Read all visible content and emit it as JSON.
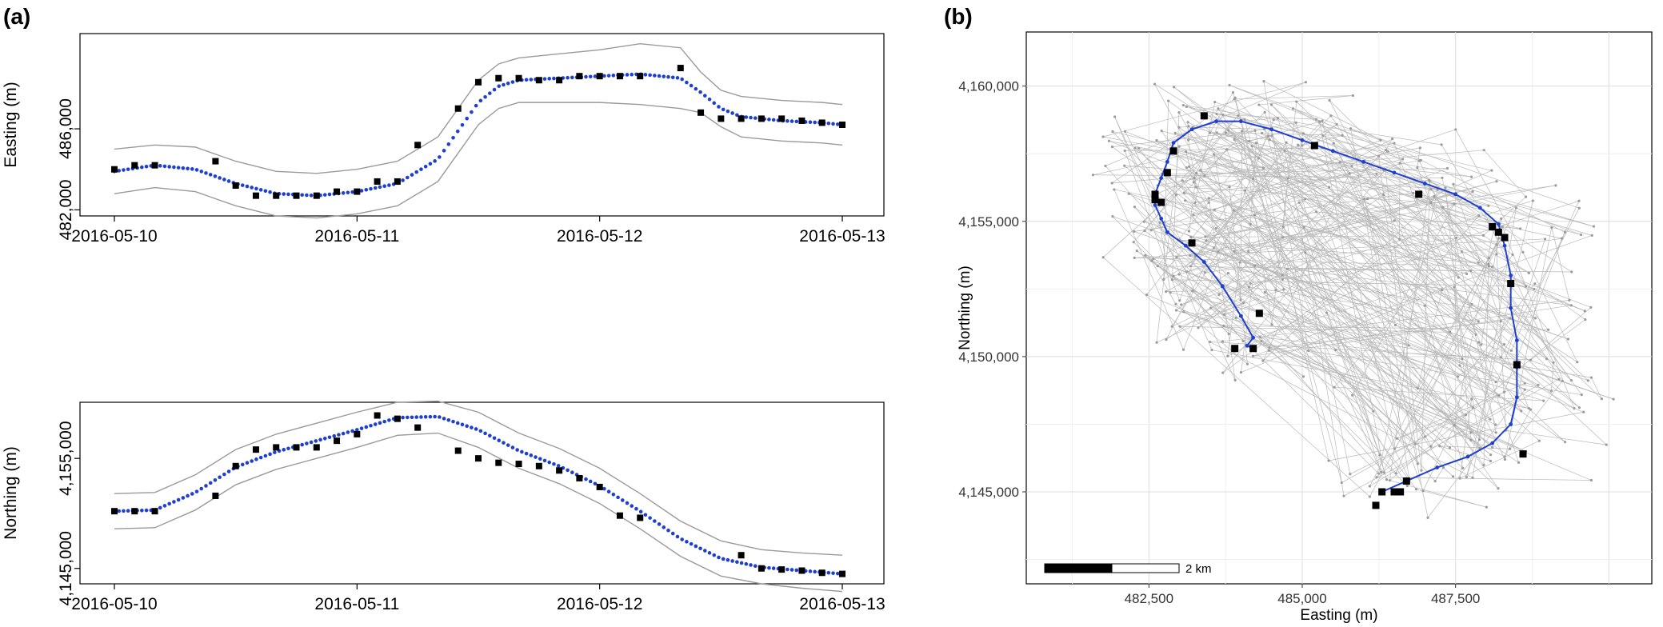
{
  "panels": {
    "a_label": "(a)",
    "b_label": "(b)"
  },
  "chart_data": [
    {
      "type": "line",
      "panel": "(a) top",
      "title": "",
      "xlabel": "",
      "ylabel": "Easting (m)",
      "x_ticks": [
        "2016-05-10",
        "2016-05-11",
        "2016-05-12",
        "2016-05-13"
      ],
      "y_ticks": [
        "482,000",
        "486,000"
      ],
      "xlim": [
        "2016-05-10T00:00",
        "2016-05-13T00:00"
      ],
      "ylim": [
        481700,
        490700
      ],
      "observations": {
        "x": [
          "2016-05-10T00:00",
          "2016-05-10T02:00",
          "2016-05-10T04:00",
          "2016-05-10T10:00",
          "2016-05-10T12:00",
          "2016-05-10T14:00",
          "2016-05-10T16:00",
          "2016-05-10T18:00",
          "2016-05-10T20:00",
          "2016-05-10T22:00",
          "2016-05-11T00:00",
          "2016-05-11T02:00",
          "2016-05-11T04:00",
          "2016-05-11T06:00",
          "2016-05-11T10:00",
          "2016-05-11T12:00",
          "2016-05-11T14:00",
          "2016-05-11T16:00",
          "2016-05-11T18:00",
          "2016-05-11T20:00",
          "2016-05-11T22:00",
          "2016-05-12T00:00",
          "2016-05-12T02:00",
          "2016-05-12T04:00",
          "2016-05-12T08:00",
          "2016-05-12T10:00",
          "2016-05-12T12:00",
          "2016-05-12T14:00",
          "2016-05-12T16:00",
          "2016-05-12T18:00",
          "2016-05-12T20:00",
          "2016-05-12T22:00",
          "2016-05-13T00:00"
        ],
        "y": [
          484000,
          484200,
          484200,
          484400,
          483200,
          482700,
          482700,
          482700,
          482700,
          482900,
          482900,
          483400,
          483400,
          485200,
          487000,
          488300,
          488500,
          488500,
          488400,
          488400,
          488600,
          488600,
          488600,
          488600,
          489000,
          486800,
          486500,
          486500,
          486500,
          486500,
          486400,
          486300,
          486200
        ]
      },
      "fit": {
        "x": [
          "2016-05-10T00:00",
          "2016-05-10T04:00",
          "2016-05-10T08:00",
          "2016-05-10T12:00",
          "2016-05-10T16:00",
          "2016-05-10T20:00",
          "2016-05-11T00:00",
          "2016-05-11T04:00",
          "2016-05-11T08:00",
          "2016-05-11T10:00",
          "2016-05-11T12:00",
          "2016-05-11T14:00",
          "2016-05-11T16:00",
          "2016-05-11T20:00",
          "2016-05-12T00:00",
          "2016-05-12T04:00",
          "2016-05-12T08:00",
          "2016-05-12T10:00",
          "2016-05-12T12:00",
          "2016-05-12T14:00",
          "2016-05-12T18:00",
          "2016-05-12T22:00",
          "2016-05-13T00:00"
        ],
        "y": [
          483900,
          484200,
          484000,
          483300,
          482800,
          482700,
          482900,
          483300,
          484500,
          485900,
          487300,
          488100,
          488400,
          488500,
          488600,
          488700,
          488500,
          487800,
          487000,
          486600,
          486400,
          486300,
          486200
        ]
      },
      "upper_band": [
        485000,
        485200,
        485100,
        484400,
        483900,
        483800,
        484000,
        484400,
        485600,
        487000,
        488400,
        489200,
        489500,
        489700,
        489900,
        490200,
        490000,
        488800,
        487900,
        487600,
        487400,
        487300,
        487200
      ],
      "lower_band": [
        482800,
        483100,
        482900,
        482200,
        481700,
        481600,
        481800,
        482200,
        483400,
        484800,
        486200,
        487000,
        487300,
        487300,
        487300,
        487200,
        487000,
        486800,
        486100,
        485600,
        485400,
        485300,
        485200
      ]
    },
    {
      "type": "line",
      "panel": "(a) bottom",
      "title": "",
      "xlabel": "",
      "ylabel": "Northing (m)",
      "x_ticks": [
        "2016-05-10",
        "2016-05-11",
        "2016-05-12",
        "2016-05-13"
      ],
      "y_ticks": [
        "4,145,000",
        "4,155,000"
      ],
      "xlim": [
        "2016-05-10T00:00",
        "2016-05-13T00:00"
      ],
      "ylim": [
        4143600,
        4160100
      ],
      "observations": {
        "x": [
          "2016-05-10T00:00",
          "2016-05-10T02:00",
          "2016-05-10T04:00",
          "2016-05-10T10:00",
          "2016-05-10T12:00",
          "2016-05-10T14:00",
          "2016-05-10T16:00",
          "2016-05-10T18:00",
          "2016-05-10T20:00",
          "2016-05-10T22:00",
          "2016-05-11T00:00",
          "2016-05-11T02:00",
          "2016-05-11T04:00",
          "2016-05-11T06:00",
          "2016-05-11T10:00",
          "2016-05-11T12:00",
          "2016-05-11T14:00",
          "2016-05-11T16:00",
          "2016-05-11T18:00",
          "2016-05-11T20:00",
          "2016-05-11T22:00",
          "2016-05-12T00:00",
          "2016-05-12T02:00",
          "2016-05-12T04:00",
          "2016-05-12T14:00",
          "2016-05-12T16:00",
          "2016-05-12T18:00",
          "2016-05-12T20:00",
          "2016-05-12T22:00",
          "2016-05-13T00:00"
        ],
        "y": [
          4150200,
          4150200,
          4150200,
          4151600,
          4154300,
          4155800,
          4156000,
          4156000,
          4156000,
          4156600,
          4157200,
          4158900,
          4158600,
          4157800,
          4155700,
          4155000,
          4154600,
          4154500,
          4154300,
          4153900,
          4153200,
          4152400,
          4149800,
          4149600,
          4146200,
          4145000,
          4144900,
          4144800,
          4144600,
          4144500
        ]
      },
      "fit": {
        "x": [
          "2016-05-10T00:00",
          "2016-05-10T04:00",
          "2016-05-10T08:00",
          "2016-05-10T12:00",
          "2016-05-10T16:00",
          "2016-05-10T20:00",
          "2016-05-11T00:00",
          "2016-05-11T04:00",
          "2016-05-11T08:00",
          "2016-05-11T12:00",
          "2016-05-11T16:00",
          "2016-05-11T20:00",
          "2016-05-12T00:00",
          "2016-05-12T04:00",
          "2016-05-12T08:00",
          "2016-05-12T12:00",
          "2016-05-12T16:00",
          "2016-05-12T20:00",
          "2016-05-13T00:00"
        ],
        "y": [
          4150200,
          4150300,
          4151900,
          4154200,
          4155600,
          4156600,
          4157600,
          4158700,
          4158800,
          4157600,
          4155700,
          4154300,
          4152500,
          4150200,
          4147700,
          4145900,
          4145100,
          4144800,
          4144500
        ]
      },
      "upper_band": [
        4151800,
        4151900,
        4153500,
        4155800,
        4157200,
        4158200,
        4159200,
        4160100,
        4160200,
        4159200,
        4157300,
        4155900,
        4154100,
        4151800,
        4149300,
        4147500,
        4146700,
        4146400,
        4146200
      ],
      "lower_band": [
        4148600,
        4148700,
        4150300,
        4152600,
        4154000,
        4155000,
        4156000,
        4157100,
        4157300,
        4156000,
        4154100,
        4152700,
        4150900,
        4148600,
        4146100,
        4144300,
        4143600,
        4143200,
        4142900
      ]
    },
    {
      "type": "scatter",
      "panel": "(b)",
      "title": "",
      "xlabel": "Easting (m)",
      "ylabel": "Northing (m)",
      "x_ticks": [
        "482,500",
        "485,000",
        "487,500"
      ],
      "y_ticks": [
        "4,145,000",
        "4,150,000",
        "4,155,000",
        "4,160,000"
      ],
      "xlim": [
        480500,
        490700
      ],
      "ylim": [
        4141600,
        4162000
      ],
      "grid": true,
      "scalebar": "2 km",
      "observations": {
        "x": [
          483400,
          482900,
          482800,
          482600,
          482600,
          482700,
          483200,
          484300,
          483900,
          484200,
          485200,
          486900,
          488100,
          488200,
          488300,
          488400,
          488500,
          488600,
          486300,
          486200,
          486500,
          486600,
          486700
        ],
        "y": [
          4158900,
          4157600,
          4156800,
          4156000,
          4155800,
          4155700,
          4154200,
          4151600,
          4150300,
          4150300,
          4157800,
          4156000,
          4154800,
          4154600,
          4154400,
          4152700,
          4149700,
          4146400,
          4145000,
          4144500,
          4145000,
          4145000,
          4145400
        ]
      },
      "track": {
        "x": [
          484200,
          484100,
          484200,
          484000,
          483700,
          483400,
          483100,
          482800,
          482700,
          482600,
          482600,
          482700,
          482800,
          482900,
          483200,
          483600,
          484000,
          484500,
          485000,
          485500,
          486000,
          486500,
          487000,
          487500,
          487900,
          488200,
          488300,
          488400,
          488400,
          488500,
          488500,
          488500,
          488400,
          488100,
          487700,
          487200,
          486700,
          486300
        ],
        "y": [
          4150300,
          4150400,
          4150700,
          4151500,
          4152600,
          4153500,
          4154100,
          4154600,
          4155100,
          4155600,
          4156000,
          4156600,
          4157200,
          4157900,
          4158400,
          4158700,
          4158700,
          4158400,
          4158000,
          4157600,
          4157200,
          4156800,
          4156400,
          4156000,
          4155500,
          4154900,
          4154100,
          4153000,
          4151800,
          4150600,
          4149600,
          4148500,
          4147500,
          4146800,
          4146300,
          4145900,
          4145400,
          4145000
        ]
      }
    }
  ]
}
